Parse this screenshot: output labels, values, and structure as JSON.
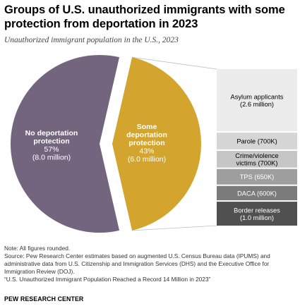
{
  "title": "Groups of U.S. unauthorized immigrants with some protection from deportation in 2023",
  "subtitle": "Unauthorized immigrant population in the U.S., 2023",
  "chart_data": {
    "type": "pie",
    "title": "Groups of U.S. unauthorized immigrants with some protection from deportation in 2023",
    "subtitle": "Unauthorized immigrant population in the U.S., 2023",
    "slices": [
      {
        "label": "No deportation protection",
        "percent_label": "57%",
        "amount_label": "(8.0 million)",
        "value": 8.0,
        "color": "#74657f"
      },
      {
        "label": "Some deportation protection",
        "percent_label": "43%",
        "amount_label": "(6.0 million)",
        "value": 6.0,
        "color": "#d3a42e"
      }
    ],
    "breakdown": {
      "of": "Some deportation protection",
      "items": [
        {
          "label": "Asylum applicants",
          "amount_label": "(2.6 million)",
          "value": 2.6,
          "color": "#ececec",
          "text_color": "#000000"
        },
        {
          "label": "Parole (700K)",
          "value": 0.7,
          "color": "#d6d6d6",
          "text_color": "#000000"
        },
        {
          "label": "Crime/violence victims (700K)",
          "value": 0.7,
          "color": "#c6c6c6",
          "text_color": "#000000"
        },
        {
          "label": "TPS (650K)",
          "value": 0.65,
          "color": "#9e9e9e",
          "text_color": "#ffffff"
        },
        {
          "label": "DACA (600K)",
          "value": 0.6,
          "color": "#7b7b7b",
          "text_color": "#ffffff"
        },
        {
          "label": "Border releases",
          "amount_label": "(1.0 million)",
          "value": 1.0,
          "color": "#505050",
          "text_color": "#ffffff"
        }
      ]
    }
  },
  "notes": {
    "note": "Note: All figures rounded.",
    "source": "Source: Pew Research Center estimates based on augmented U.S. Census Bureau data (IPUMS) and administrative data from U.S. Citizenship and Immigration Services (DHS) and the Executive Office for Immigration Review (DOJ).",
    "report": "“U.S. Unauthorized Immigrant Population Reached a Record 14 Million in 2023”"
  },
  "credit": "PEW RESEARCH CENTER"
}
